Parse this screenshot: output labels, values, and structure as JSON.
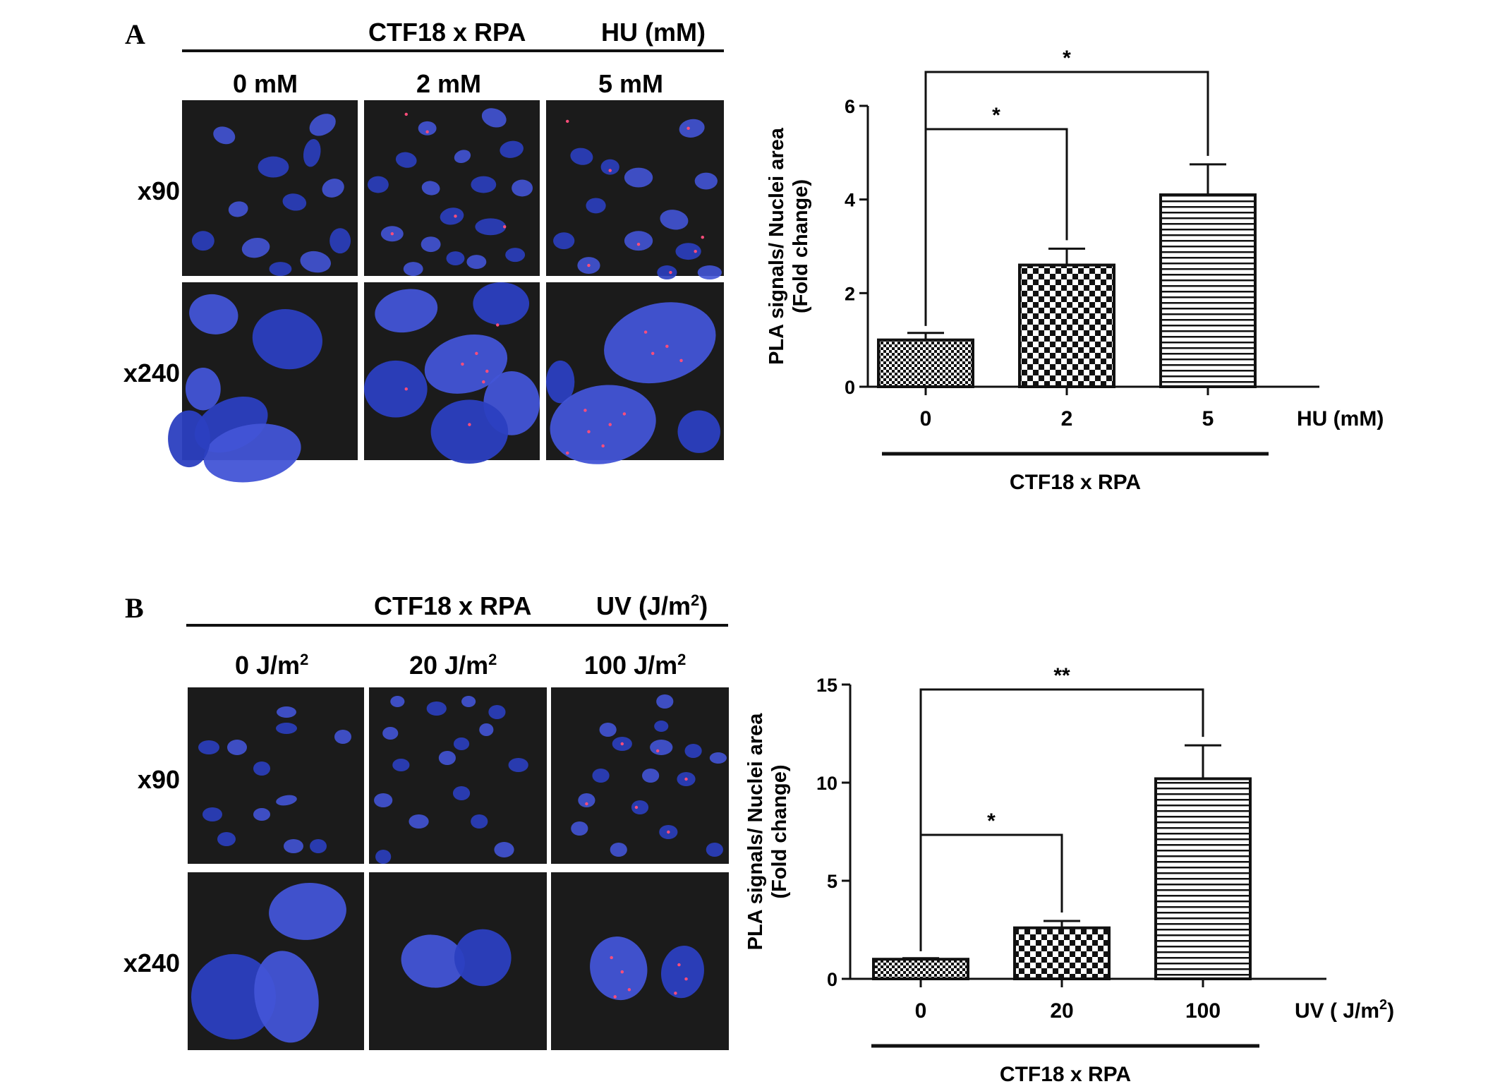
{
  "figure": {
    "A": {
      "letter": "A",
      "header_left": "CTF18 x RPA",
      "header_right": "HU (mM)",
      "columns": [
        "0 mM",
        "2 mM",
        "5 mM"
      ],
      "rows": [
        "x90",
        "x240"
      ]
    },
    "B": {
      "letter": "B",
      "header_left": "CTF18 x RPA",
      "header_right_main": "UV (J/m",
      "header_right_sup": "2",
      "header_right_tail": ")",
      "columns": [
        {
          "main": "0 J/m",
          "sup": "2"
        },
        {
          "main": "20 J/m",
          "sup": "2"
        },
        {
          "main": "100 J/m",
          "sup": "2"
        }
      ],
      "rows": [
        "x90",
        "x240"
      ]
    }
  },
  "chart_data": [
    {
      "type": "bar",
      "panel": "A",
      "categories": [
        "0",
        "2",
        "5"
      ],
      "values": [
        1.0,
        2.6,
        4.1
      ],
      "errors": [
        0.15,
        0.35,
        0.65
      ],
      "patterns": [
        "fine-check",
        "check",
        "horizontal-lines"
      ],
      "ylabel_line1": "PLA signals/ Nuclei area",
      "ylabel_line2": "(Fold change)",
      "xlabel": "HU (mM)",
      "group_label": "CTF18 x RPA",
      "yticks": [
        0,
        2,
        4,
        6
      ],
      "ylim": [
        0,
        6
      ],
      "significance": [
        {
          "from": "0",
          "to": "2",
          "label": "*"
        },
        {
          "from": "0",
          "to": "5",
          "label": "*"
        }
      ]
    },
    {
      "type": "bar",
      "panel": "B",
      "categories": [
        "0",
        "20",
        "100"
      ],
      "values": [
        1.0,
        2.6,
        10.2
      ],
      "errors": [
        0.05,
        0.35,
        1.7
      ],
      "patterns": [
        "fine-check",
        "check",
        "horizontal-lines"
      ],
      "ylabel_line1": "PLA signals/ Nuclei area",
      "ylabel_line2": "(Fold change)",
      "xlabel_main": "UV ( J/m",
      "xlabel_sup": "2",
      "xlabel_tail": ")",
      "group_label": "CTF18 x RPA",
      "yticks": [
        0,
        5,
        10,
        15
      ],
      "ylim": [
        0,
        15
      ],
      "significance": [
        {
          "from": "0",
          "to": "20",
          "label": "*"
        },
        {
          "from": "0",
          "to": "100",
          "label": "**"
        }
      ]
    }
  ],
  "colors": {
    "nucleus": "#2b3fc0",
    "nucleus_light": "#4254d6",
    "background": "#1b1b1b",
    "pla_dot": "#ff4d7a"
  }
}
